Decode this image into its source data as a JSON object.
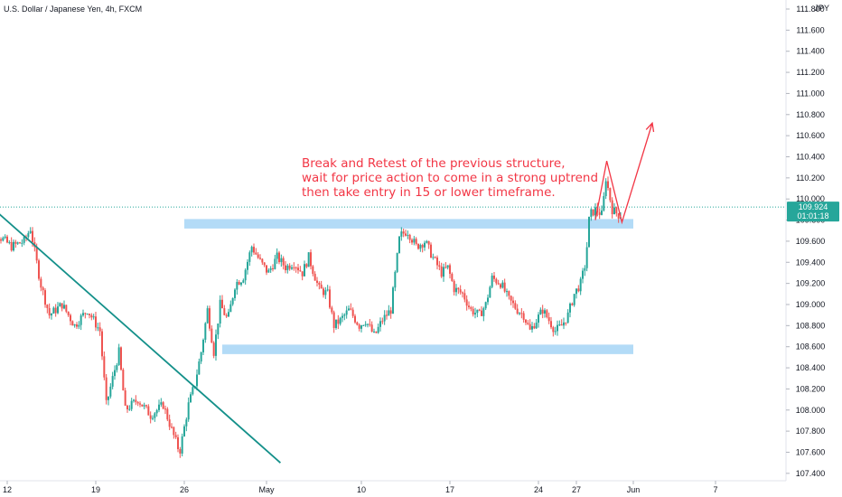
{
  "chart_data": {
    "type": "candlestick",
    "title": "U.S. Dollar / Japanese Yen, 4h, FXCM",
    "currency_label": "JPY",
    "ylim": [
      107.33,
      111.86
    ],
    "y_ticks": [
      "111.800",
      "111.600",
      "111.400",
      "111.200",
      "111.000",
      "110.800",
      "110.600",
      "110.400",
      "110.200",
      "110.000",
      "109.800",
      "109.600",
      "109.400",
      "109.200",
      "109.000",
      "108.800",
      "108.600",
      "108.400",
      "108.200",
      "108.000",
      "107.800",
      "107.600",
      "107.400"
    ],
    "x_ticks": [
      {
        "label": "12",
        "t": 0
      },
      {
        "label": "19",
        "t": 7
      },
      {
        "label": "26",
        "t": 14
      },
      {
        "label": "May",
        "t": 20.5
      },
      {
        "label": "10",
        "t": 28
      },
      {
        "label": "17",
        "t": 35
      },
      {
        "label": "24",
        "t": 42
      },
      {
        "label": "27",
        "t": 45
      },
      {
        "label": "Jun",
        "t": 49.5
      },
      {
        "label": "7",
        "t": 56
      }
    ],
    "price_waypoints": [
      [
        -2.0,
        109.65
      ],
      [
        -1.0,
        109.7
      ],
      [
        0.5,
        109.55
      ],
      [
        1.5,
        109.6
      ],
      [
        2.0,
        109.72
      ],
      [
        2.8,
        109.2
      ],
      [
        3.5,
        108.9
      ],
      [
        4.5,
        109.0
      ],
      [
        5.5,
        108.8
      ],
      [
        6.5,
        108.95
      ],
      [
        7.5,
        108.75
      ],
      [
        8.0,
        108.05
      ],
      [
        9.0,
        108.55
      ],
      [
        9.5,
        108.0
      ],
      [
        10.5,
        108.1
      ],
      [
        11.5,
        107.95
      ],
      [
        12.5,
        108.05
      ],
      [
        13.2,
        107.8
      ],
      [
        13.8,
        107.6
      ],
      [
        14.5,
        108.05
      ],
      [
        15.0,
        108.25
      ],
      [
        15.5,
        108.55
      ],
      [
        16.0,
        108.95
      ],
      [
        16.5,
        108.55
      ],
      [
        17.0,
        109.0
      ],
      [
        17.6,
        108.85
      ],
      [
        18.2,
        109.2
      ],
      [
        18.8,
        109.25
      ],
      [
        19.5,
        109.55
      ],
      [
        20.2,
        109.4
      ],
      [
        20.8,
        109.3
      ],
      [
        21.5,
        109.45
      ],
      [
        22.2,
        109.35
      ],
      [
        22.8,
        109.4
      ],
      [
        23.5,
        109.3
      ],
      [
        24.0,
        109.45
      ],
      [
        24.8,
        109.15
      ],
      [
        25.5,
        109.1
      ],
      [
        26.0,
        108.8
      ],
      [
        26.5,
        108.85
      ],
      [
        27.2,
        108.95
      ],
      [
        28.0,
        108.8
      ],
      [
        28.5,
        108.85
      ],
      [
        29.2,
        108.7
      ],
      [
        29.8,
        108.85
      ],
      [
        30.5,
        108.95
      ],
      [
        30.9,
        109.35
      ],
      [
        31.2,
        109.65
      ],
      [
        31.8,
        109.7
      ],
      [
        32.5,
        109.55
      ],
      [
        33.2,
        109.6
      ],
      [
        33.8,
        109.45
      ],
      [
        34.5,
        109.3
      ],
      [
        35.0,
        109.35
      ],
      [
        35.5,
        109.15
      ],
      [
        36.2,
        109.1
      ],
      [
        36.8,
        108.95
      ],
      [
        37.5,
        108.9
      ],
      [
        38.0,
        109.0
      ],
      [
        38.5,
        109.25
      ],
      [
        39.2,
        109.2
      ],
      [
        39.8,
        109.05
      ],
      [
        40.5,
        108.95
      ],
      [
        41.0,
        108.9
      ],
      [
        41.5,
        108.75
      ],
      [
        42.0,
        108.85
      ],
      [
        42.5,
        108.95
      ],
      [
        43.0,
        108.85
      ],
      [
        43.5,
        108.75
      ],
      [
        44.0,
        108.8
      ],
      [
        44.5,
        108.9
      ],
      [
        45.0,
        109.1
      ],
      [
        45.5,
        109.2
      ],
      [
        45.9,
        109.4
      ],
      [
        46.2,
        109.85
      ],
      [
        46.7,
        109.9
      ],
      [
        47.2,
        109.85
      ],
      [
        47.5,
        110.2
      ],
      [
        48.0,
        109.9
      ],
      [
        48.5,
        109.85
      ]
    ],
    "current_price": "109.924",
    "countdown": "01:01:18",
    "current_price_value": 109.924,
    "zones": [
      {
        "name": "resistance-zone",
        "t_start": 14,
        "t_end": 49.5,
        "y_low": 109.72,
        "y_high": 109.81
      },
      {
        "name": "support-zone",
        "t_start": 17,
        "t_end": 49.5,
        "y_low": 108.53,
        "y_high": 108.62
      }
    ],
    "trendline": {
      "t_start": -1.5,
      "y_start": 109.95,
      "t_end": 21.6,
      "y_end": 107.5
    },
    "projection": [
      [
        46.5,
        109.8
      ],
      [
        47.4,
        110.36
      ],
      [
        48.6,
        109.78
      ],
      [
        51.0,
        110.72
      ]
    ],
    "annotation": {
      "lines": [
        "Break and Retest of the previous structure,",
        "wait for price action to come in a strong uptrend",
        "then take entry in 15 or lower timeframe."
      ],
      "color": "#f23645"
    },
    "colors": {
      "up": "#26a69a",
      "down": "#ef5350",
      "zone": "#b3dbf7",
      "trendline": "#14908a",
      "price_line": "#26a69a"
    }
  }
}
